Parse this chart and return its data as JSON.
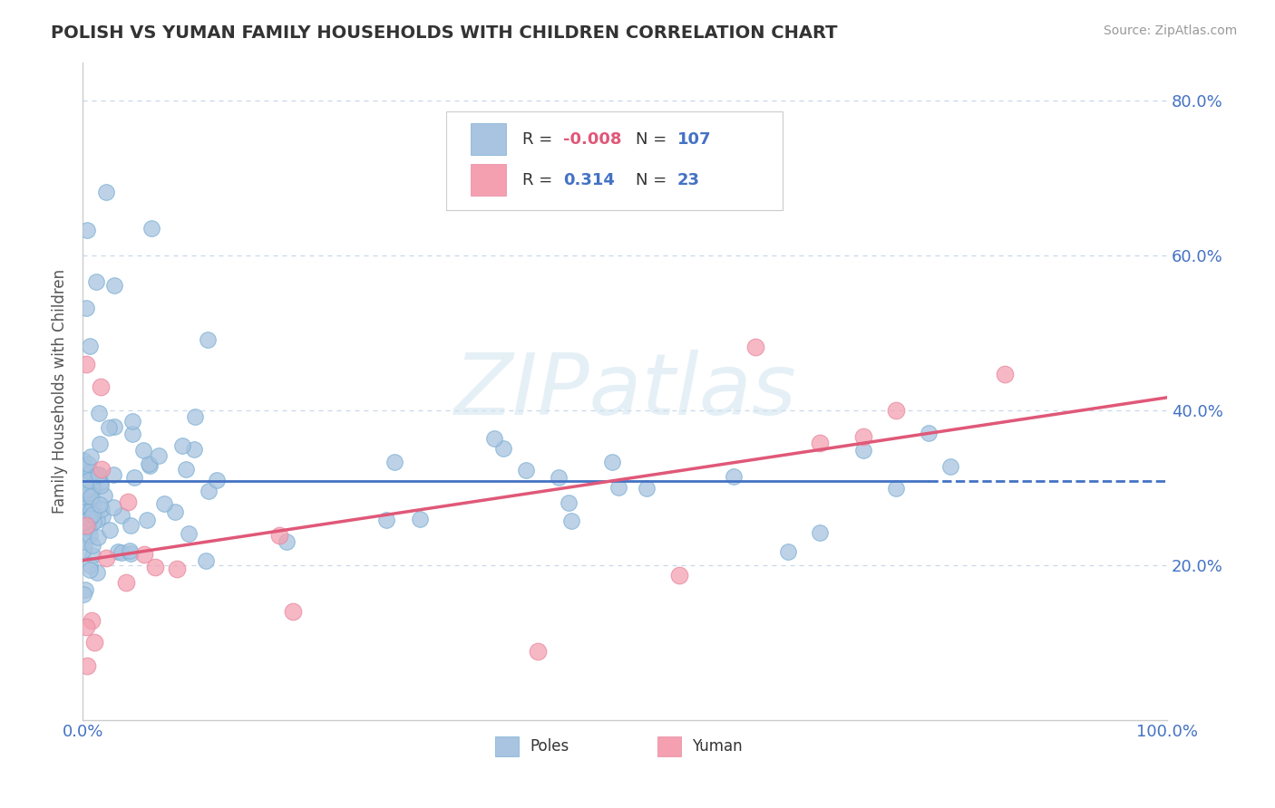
{
  "title": "POLISH VS YUMAN FAMILY HOUSEHOLDS WITH CHILDREN CORRELATION CHART",
  "source": "Source: ZipAtlas.com",
  "ylabel": "Family Households with Children",
  "xlim": [
    0.0,
    1.0
  ],
  "ylim": [
    0.0,
    0.85
  ],
  "yticks": [
    0.0,
    0.2,
    0.4,
    0.6,
    0.8
  ],
  "yticklabels": [
    "",
    "20.0%",
    "40.0%",
    "60.0%",
    "80.0%"
  ],
  "poles_R": -0.008,
  "poles_N": 107,
  "yuman_R": 0.314,
  "yuman_N": 23,
  "legend_label_poles": "Poles",
  "legend_label_yuman": "Yuman",
  "dot_color_poles": "#a8c4e0",
  "dot_edge_poles": "#7aafd4",
  "dot_color_yuman": "#f4a0b0",
  "dot_edge_yuman": "#e888a0",
  "line_color_poles": "#4472c4",
  "line_color_yuman": "#e05878",
  "bg_color": "#ffffff",
  "watermark": "ZIPatlas",
  "grid_color": "#c8d8e8",
  "text_color_blue": "#4472c4",
  "text_color_neg": "#e05878",
  "title_color": "#333333",
  "source_color": "#999999",
  "poles_line_y0": 0.305,
  "poles_line_y1": 0.3,
  "poles_line_solid_end": 0.78,
  "yuman_line_y0": 0.2,
  "yuman_line_y1": 0.4
}
